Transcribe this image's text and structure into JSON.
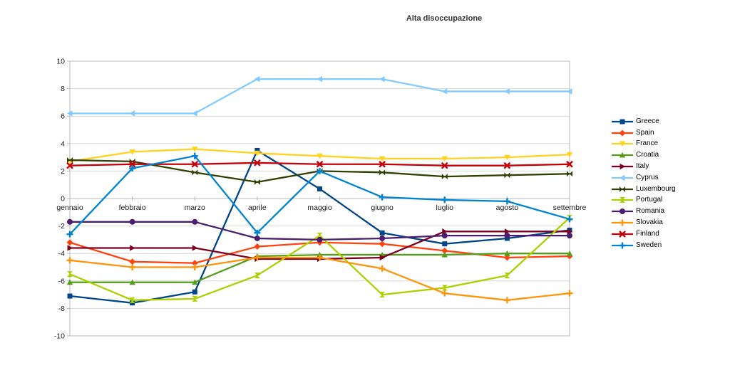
{
  "title": "Alta disoccupazione",
  "chart_data": {
    "type": "line",
    "title": "Alta disoccupazione",
    "categories": [
      "gennaio",
      "febbraio",
      "marzo",
      "aprile",
      "maggio",
      "giugno",
      "luglio",
      "agosto",
      "settembre"
    ],
    "yticks": [
      -10,
      -8,
      -6,
      -4,
      -2,
      0,
      2,
      4,
      6,
      8,
      10
    ],
    "ylim": [
      -10,
      10
    ],
    "grid": true,
    "legend_position": "right",
    "series": [
      {
        "name": "Greece",
        "color": "#004586",
        "marker": "square",
        "values": [
          -7.1,
          -7.6,
          -6.8,
          3.5,
          0.7,
          -2.5,
          -3.3,
          -2.9,
          -2.3
        ]
      },
      {
        "name": "Spain",
        "color": "#FF420E",
        "marker": "diamond",
        "values": [
          -3.2,
          -4.6,
          -4.7,
          -3.5,
          -3.2,
          -3.3,
          -3.8,
          -4.3,
          -4.2
        ]
      },
      {
        "name": "France",
        "color": "#FFD320",
        "marker": "triangle-down",
        "values": [
          2.7,
          3.4,
          3.6,
          3.3,
          3.1,
          2.9,
          2.9,
          3.0,
          3.2
        ]
      },
      {
        "name": "Croatia",
        "color": "#579D1C",
        "marker": "triangle-up",
        "values": [
          -6.1,
          -6.1,
          -6.1,
          -4.2,
          -4.1,
          -4.1,
          -4.1,
          -4.0,
          -4.0
        ]
      },
      {
        "name": "Italy",
        "color": "#7E0021",
        "marker": "triangle-right",
        "values": [
          -3.6,
          -3.6,
          -3.6,
          -4.4,
          -4.4,
          -4.3,
          -2.4,
          -2.4,
          -2.4
        ]
      },
      {
        "name": "Cyprus",
        "color": "#83CAFF",
        "marker": "triangle-left",
        "values": [
          6.2,
          6.2,
          6.2,
          8.7,
          8.7,
          8.7,
          7.8,
          7.8,
          7.8
        ]
      },
      {
        "name": "Luxembourg",
        "color": "#314004",
        "marker": "bowtie-h",
        "values": [
          2.8,
          2.7,
          1.9,
          1.2,
          2.0,
          1.9,
          1.6,
          1.7,
          1.8
        ]
      },
      {
        "name": "Portugal",
        "color": "#AECF00",
        "marker": "bowtie-v",
        "values": [
          -5.5,
          -7.4,
          -7.3,
          -5.6,
          -2.7,
          -7.0,
          -6.5,
          -5.6,
          -1.4
        ]
      },
      {
        "name": "Romania",
        "color": "#4B1F6F",
        "marker": "circle",
        "values": [
          -1.7,
          -1.7,
          -1.7,
          -2.9,
          -3.0,
          -2.9,
          -2.7,
          -2.7,
          -2.7
        ]
      },
      {
        "name": "Slovakia",
        "color": "#FF950E",
        "marker": "plus",
        "values": [
          -4.5,
          -5.0,
          -5.0,
          -4.3,
          -4.3,
          -5.1,
          -6.9,
          -7.4,
          -6.9
        ]
      },
      {
        "name": "Finland",
        "color": "#C5000B",
        "marker": "x-cross",
        "values": [
          2.4,
          2.5,
          2.5,
          2.6,
          2.5,
          2.5,
          2.4,
          2.4,
          2.5
        ]
      },
      {
        "name": "Sweden",
        "color": "#0084D1",
        "marker": "plus",
        "values": [
          -2.6,
          2.2,
          3.1,
          -2.5,
          2.0,
          0.1,
          -0.1,
          -0.2,
          -1.5
        ]
      }
    ]
  }
}
